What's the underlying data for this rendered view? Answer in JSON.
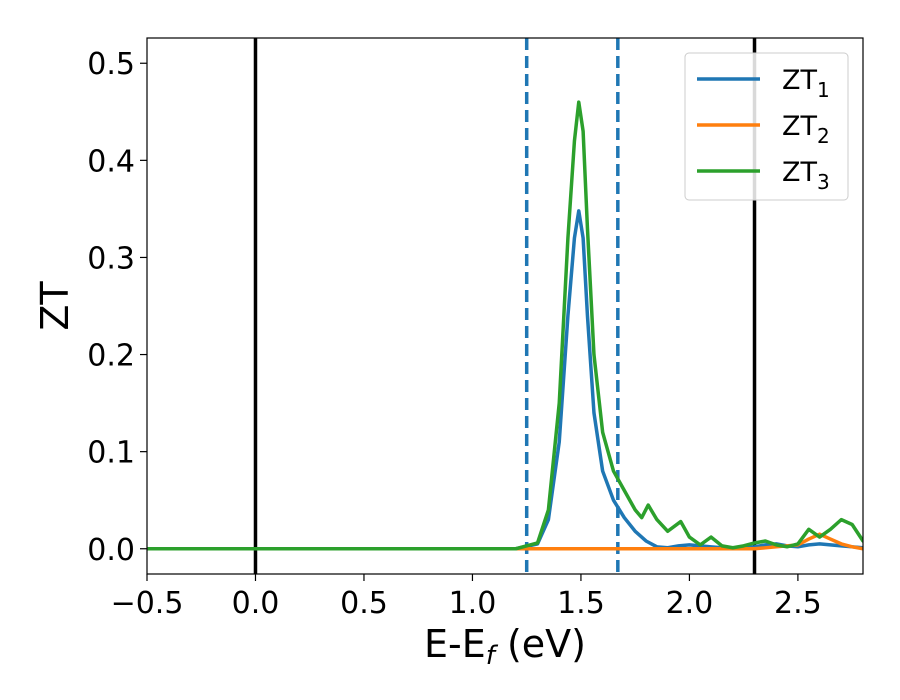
{
  "chart_data": {
    "type": "line",
    "xlabel_main": "E-E",
    "xlabel_sub": "f",
    "xlabel_units": " (eV)",
    "ylabel": "ZT",
    "xlim": [
      -0.5,
      2.8
    ],
    "ylim": [
      -0.026,
      0.526
    ],
    "xticks": [
      -0.5,
      0.0,
      0.5,
      1.0,
      1.5,
      2.0,
      2.5
    ],
    "xtick_labels": [
      "−0.5",
      "0.0",
      "0.5",
      "1.0",
      "1.5",
      "2.0",
      "2.5"
    ],
    "yticks": [
      0.0,
      0.1,
      0.2,
      0.3,
      0.4,
      0.5
    ],
    "ytick_labels": [
      "0.0",
      "0.1",
      "0.2",
      "0.3",
      "0.4",
      "0.5"
    ],
    "grid": false,
    "legend_position": "top-right",
    "vlines": [
      {
        "x": 0.0,
        "color": "#000000",
        "style": "solid"
      },
      {
        "x": 2.3,
        "color": "#000000",
        "style": "solid"
      },
      {
        "x": 1.25,
        "color": "#1f77b4",
        "style": "dashed"
      },
      {
        "x": 1.67,
        "color": "#1f77b4",
        "style": "dashed"
      }
    ],
    "series": [
      {
        "name_main": "ZT",
        "name_sub": "1",
        "color": "#1f77b4",
        "x": [
          -0.5,
          0.0,
          0.5,
          1.0,
          1.2,
          1.3,
          1.35,
          1.4,
          1.44,
          1.47,
          1.49,
          1.51,
          1.53,
          1.56,
          1.6,
          1.65,
          1.7,
          1.75,
          1.8,
          1.85,
          1.9,
          1.95,
          2.0,
          2.05,
          2.1,
          2.15,
          2.2,
          2.25,
          2.3,
          2.35,
          2.4,
          2.45,
          2.5,
          2.55,
          2.6,
          2.65,
          2.7,
          2.75,
          2.8
        ],
        "y": [
          0.0,
          0.0,
          0.0,
          0.0,
          0.0,
          0.005,
          0.03,
          0.11,
          0.24,
          0.32,
          0.348,
          0.32,
          0.24,
          0.14,
          0.08,
          0.05,
          0.032,
          0.018,
          0.008,
          0.002,
          0.001,
          0.003,
          0.004,
          0.003,
          0.002,
          0.001,
          0.0,
          0.001,
          0.002,
          0.004,
          0.005,
          0.003,
          0.002,
          0.004,
          0.005,
          0.004,
          0.003,
          0.002,
          0.001
        ]
      },
      {
        "name_main": "ZT",
        "name_sub": "2",
        "color": "#ff7f0e",
        "x": [
          -0.5,
          1.2,
          2.3,
          2.4,
          2.5,
          2.55,
          2.6,
          2.65,
          2.7,
          2.75,
          2.8
        ],
        "y": [
          0.0,
          0.0,
          0.0,
          0.002,
          0.004,
          0.01,
          0.015,
          0.01,
          0.005,
          0.002,
          0.0
        ]
      },
      {
        "name_main": "ZT",
        "name_sub": "3",
        "color": "#2ca02c",
        "x": [
          -0.5,
          0.0,
          0.5,
          1.0,
          1.2,
          1.3,
          1.35,
          1.4,
          1.44,
          1.47,
          1.49,
          1.51,
          1.53,
          1.56,
          1.6,
          1.65,
          1.7,
          1.75,
          1.78,
          1.81,
          1.85,
          1.9,
          1.96,
          2.0,
          2.05,
          2.1,
          2.15,
          2.2,
          2.25,
          2.3,
          2.35,
          2.4,
          2.45,
          2.5,
          2.55,
          2.6,
          2.65,
          2.7,
          2.75,
          2.8
        ],
        "y": [
          0.0,
          0.0,
          0.0,
          0.0,
          0.0,
          0.006,
          0.04,
          0.15,
          0.32,
          0.42,
          0.46,
          0.43,
          0.33,
          0.2,
          0.12,
          0.08,
          0.06,
          0.04,
          0.032,
          0.045,
          0.03,
          0.018,
          0.028,
          0.012,
          0.004,
          0.012,
          0.003,
          0.001,
          0.003,
          0.006,
          0.008,
          0.004,
          0.002,
          0.005,
          0.02,
          0.012,
          0.02,
          0.03,
          0.025,
          0.008
        ]
      }
    ]
  }
}
